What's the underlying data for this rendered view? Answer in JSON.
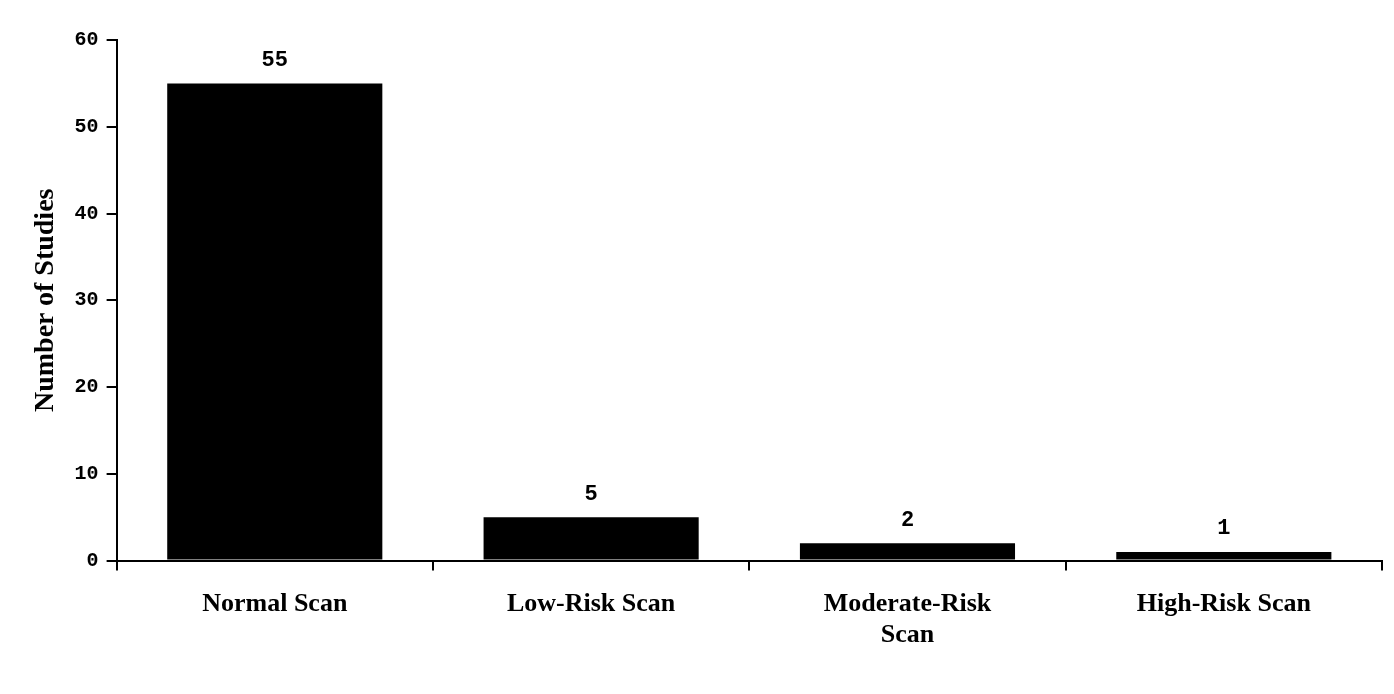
{
  "chart_data": {
    "type": "bar",
    "ylabel": "Number of Studies",
    "categories": [
      "Normal Scan",
      "Low-Risk Scan",
      "Moderate-Risk Scan",
      "High-Risk Scan"
    ],
    "values": [
      55,
      5,
      2,
      1
    ],
    "color": "#000000",
    "ylim": [
      0,
      60
    ],
    "yticks": [
      0,
      10,
      20,
      30,
      40,
      50,
      60
    ],
    "grid": false,
    "legend": false,
    "data_labels": true
  }
}
